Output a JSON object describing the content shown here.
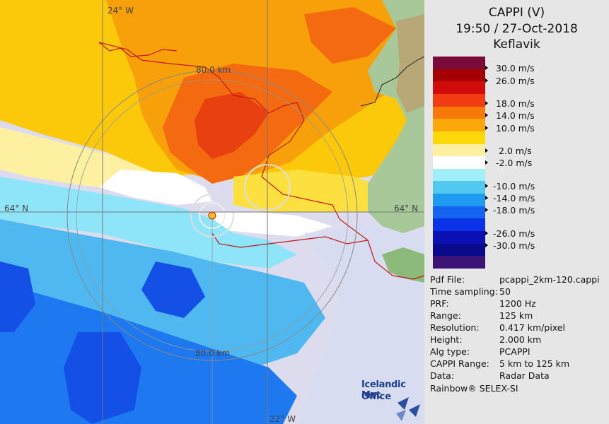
{
  "header": {
    "title": "CAPPI (V)",
    "datetime": "19:50 / 27-Oct-2018",
    "location": "Keflavik"
  },
  "scale": {
    "unit_note": "m/s",
    "ticks": [
      {
        "label": "30.0 m/s"
      },
      {
        "label": "26.0 m/s"
      },
      {
        "label": "18.0 m/s"
      },
      {
        "label": "14.0 m/s"
      },
      {
        "label": "10.0 m/s"
      },
      {
        "label": "2.0 m/s"
      },
      {
        "label": "-2.0 m/s"
      },
      {
        "label": "-10.0 m/s"
      },
      {
        "label": "-14.0 m/s"
      },
      {
        "label": "-18.0 m/s"
      },
      {
        "label": "-26.0 m/s"
      },
      {
        "label": "-30.0 m/s"
      }
    ],
    "colors": [
      "#7a0a3a",
      "#a50000",
      "#d10a0a",
      "#f03c10",
      "#f8780a",
      "#fca80a",
      "#fcd80a",
      "#fdf0a0",
      "#ffffff",
      "#a0eefa",
      "#50c8f0",
      "#1e9af0",
      "#1464f0",
      "#0a32e6",
      "#0a10b4",
      "#0a0a8c",
      "#3c1478"
    ]
  },
  "metadata": {
    "rows": [
      {
        "key": "Pdf File:",
        "value": "pcappi_2km-120.cappi"
      },
      {
        "key": "Time sampling:",
        "value": "50"
      },
      {
        "key": "PRF:",
        "value": "1200 Hz"
      },
      {
        "key": "Range:",
        "value": "125 km"
      },
      {
        "key": "Resolution:",
        "value": "0.417 km/pixel"
      },
      {
        "key": "Height:",
        "value": "2.000 km"
      },
      {
        "key": "Alg type:",
        "value": "PCAPPI"
      },
      {
        "key": "CAPPI Range:",
        "value": "5 km to 125 km"
      },
      {
        "key": "Data:",
        "value": "Radar Data"
      }
    ],
    "software": "Rainbow® SELEX-SI"
  },
  "map": {
    "labels": {
      "lon_top": "24° W",
      "lon_bottom": "22° W",
      "lat_left": "64° N",
      "lat_right": "64° N",
      "ring_north": "80.0 km",
      "ring_south": "80.0 km"
    },
    "logo": {
      "line1": "Icelandic Met",
      "line2": "Office"
    }
  }
}
